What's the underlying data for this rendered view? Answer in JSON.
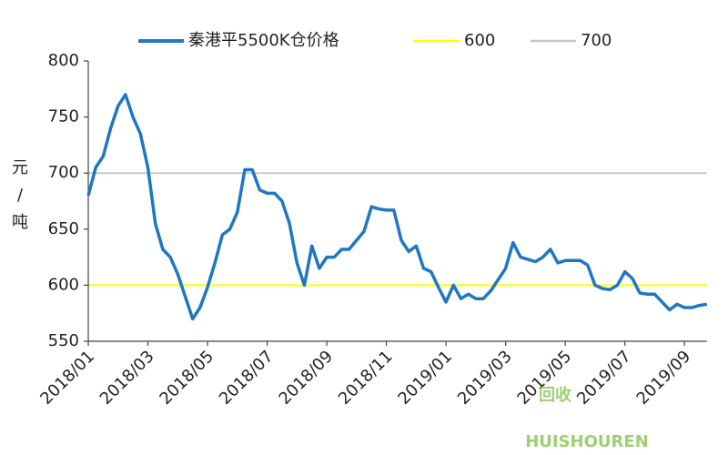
{
  "chart_data": {
    "type": "line",
    "categories": [
      "2018/01",
      null,
      null,
      null,
      null,
      null,
      null,
      null,
      "2018/03",
      null,
      null,
      null,
      null,
      null,
      null,
      null,
      "2018/05",
      null,
      null,
      null,
      null,
      null,
      null,
      null,
      "2018/07",
      null,
      null,
      null,
      null,
      null,
      null,
      null,
      "2018/09",
      null,
      null,
      null,
      null,
      null,
      null,
      null,
      "2018/11",
      null,
      null,
      null,
      null,
      null,
      null,
      null,
      "2019/01",
      null,
      null,
      null,
      null,
      null,
      null,
      null,
      "2019/03",
      null,
      null,
      null,
      null,
      null,
      null,
      null,
      "2019/05",
      null,
      null,
      null,
      null,
      null,
      null,
      null,
      "2019/07",
      null,
      null,
      null,
      null,
      null,
      null,
      null,
      "2019/09",
      null,
      null,
      null
    ],
    "series": [
      {
        "name": "秦港平5500K仓价格",
        "color": "#1f77c4",
        "values": [
          680,
          705,
          715,
          740,
          760,
          770,
          750,
          735,
          705,
          655,
          632,
          625,
          610,
          590,
          570,
          580,
          598,
          620,
          645,
          650,
          665,
          703,
          703,
          685,
          682,
          682,
          675,
          655,
          620,
          600,
          635,
          615,
          625,
          625,
          632,
          632,
          640,
          648,
          670,
          668,
          667,
          667,
          640,
          630,
          635,
          615,
          612,
          598,
          585,
          600,
          588,
          592,
          588,
          588,
          595,
          605,
          615,
          638,
          625,
          623,
          621,
          625,
          632,
          620,
          622,
          622,
          622,
          618,
          600,
          597,
          596,
          600,
          612,
          606,
          593,
          592,
          592,
          585,
          578,
          583,
          580,
          580,
          582,
          583
        ]
      }
    ],
    "reference_lines": [
      {
        "name": "600",
        "value": 600,
        "color": "#ffff00"
      },
      {
        "name": "700",
        "value": 700,
        "color": "#c8c8c8"
      }
    ],
    "ylabel": "元/吨",
    "ylim": [
      550,
      800
    ],
    "yticks": [
      550,
      600,
      650,
      700,
      750,
      800
    ],
    "legend": "top",
    "grid": false
  },
  "watermark": {
    "logo": "回收",
    "text": "HUISHOUREN"
  }
}
